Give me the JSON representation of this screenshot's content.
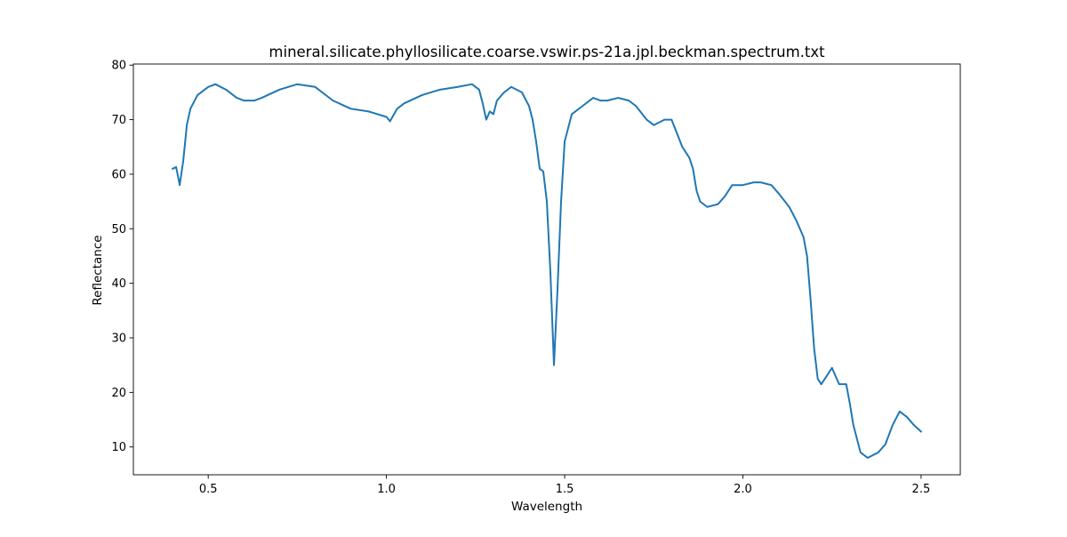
{
  "chart_data": {
    "type": "line",
    "title": "mineral.silicate.phyllosilicate.coarse.vswir.ps-21a.jpl.beckman.spectrum.txt",
    "xlabel": "Wavelength",
    "ylabel": "Reflectance",
    "xlim": [
      0.29,
      2.61
    ],
    "ylim": [
      4.9,
      80.2
    ],
    "xticks": [
      0.5,
      1.0,
      1.5,
      2.0,
      2.5
    ],
    "xtick_labels": [
      "0.5",
      "1.0",
      "1.5",
      "2.0",
      "2.5"
    ],
    "yticks": [
      10,
      20,
      30,
      40,
      50,
      60,
      70,
      80
    ],
    "ytick_labels": [
      "10",
      "20",
      "30",
      "40",
      "50",
      "60",
      "70",
      "80"
    ],
    "grid": false,
    "legend": "none",
    "series": [
      {
        "color": "#1f77b4",
        "x": [
          0.4,
          0.41,
          0.42,
          0.43,
          0.44,
          0.45,
          0.47,
          0.5,
          0.52,
          0.55,
          0.58,
          0.6,
          0.63,
          0.65,
          0.7,
          0.75,
          0.8,
          0.85,
          0.9,
          0.95,
          1.0,
          1.01,
          1.03,
          1.05,
          1.1,
          1.15,
          1.2,
          1.24,
          1.26,
          1.27,
          1.28,
          1.29,
          1.3,
          1.31,
          1.33,
          1.35,
          1.38,
          1.4,
          1.41,
          1.42,
          1.43,
          1.44,
          1.45,
          1.46,
          1.47,
          1.48,
          1.49,
          1.5,
          1.52,
          1.55,
          1.58,
          1.6,
          1.62,
          1.65,
          1.68,
          1.7,
          1.73,
          1.75,
          1.78,
          1.8,
          1.83,
          1.85,
          1.86,
          1.87,
          1.88,
          1.9,
          1.93,
          1.95,
          1.97,
          2.0,
          2.03,
          2.05,
          2.08,
          2.1,
          2.13,
          2.15,
          2.17,
          2.18,
          2.19,
          2.2,
          2.21,
          2.22,
          2.23,
          2.25,
          2.27,
          2.29,
          2.3,
          2.31,
          2.33,
          2.35,
          2.38,
          2.4,
          2.42,
          2.44,
          2.46,
          2.48,
          2.5
        ],
        "y": [
          61.0,
          61.3,
          58.0,
          62.5,
          69.0,
          72.0,
          74.5,
          76.0,
          76.5,
          75.5,
          74.0,
          73.5,
          73.5,
          74.0,
          75.5,
          76.5,
          76.0,
          73.5,
          72.0,
          71.5,
          70.5,
          69.7,
          72.0,
          73.0,
          74.5,
          75.5,
          76.0,
          76.5,
          75.5,
          73.0,
          70.0,
          71.5,
          71.0,
          73.5,
          75.0,
          76.0,
          75.0,
          72.5,
          70.0,
          66.0,
          61.0,
          60.5,
          55.0,
          42.0,
          25.0,
          39.0,
          55.0,
          66.0,
          71.0,
          72.5,
          74.0,
          73.5,
          73.5,
          74.0,
          73.5,
          72.5,
          70.0,
          69.0,
          70.0,
          70.0,
          65.0,
          63.0,
          61.0,
          57.0,
          55.0,
          54.0,
          54.5,
          56.0,
          58.0,
          58.0,
          58.5,
          58.5,
          58.0,
          56.5,
          54.0,
          51.5,
          48.5,
          45.0,
          37.0,
          28.0,
          22.5,
          21.5,
          22.5,
          24.5,
          21.5,
          21.5,
          18.0,
          14.0,
          9.0,
          8.0,
          9.0,
          10.5,
          14.0,
          16.5,
          15.5,
          14.0,
          12.8
        ]
      }
    ]
  }
}
